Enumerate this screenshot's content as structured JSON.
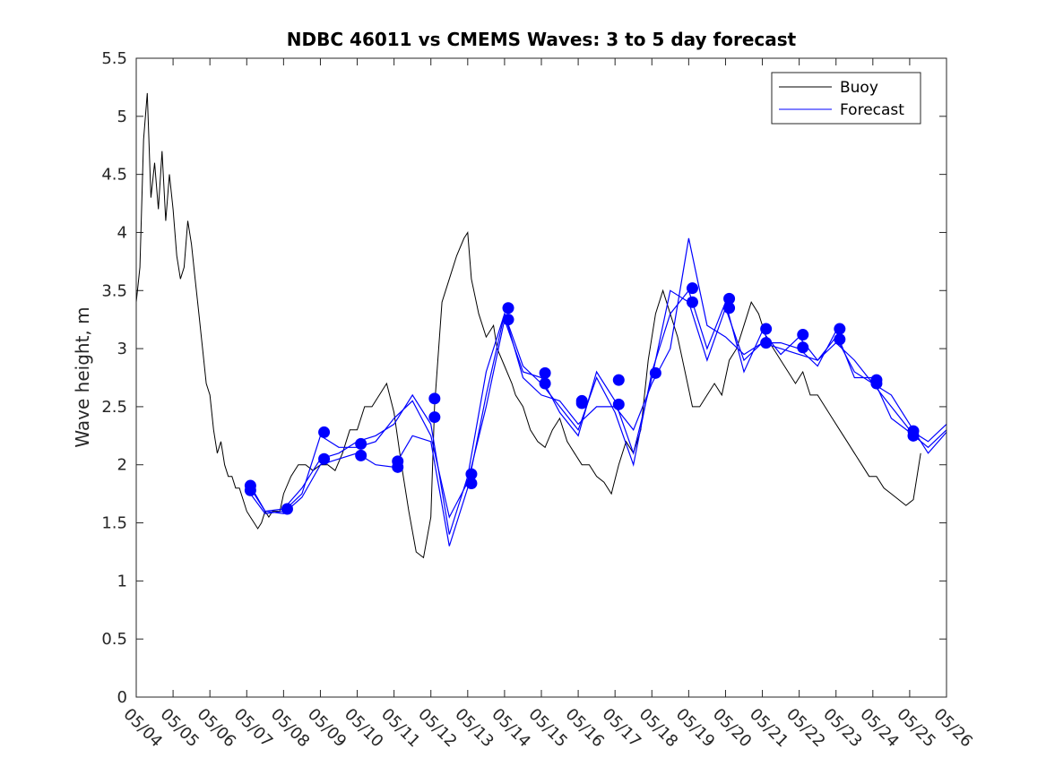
{
  "chart_data": {
    "type": "line",
    "title": "NDBC 46011 vs CMEMS Waves: 3 to 5 day forecast",
    "xlabel": "",
    "ylabel": "Wave height, m",
    "xlim": [
      0,
      22
    ],
    "ylim": [
      0,
      5.5
    ],
    "yticks": [
      0,
      0.5,
      1,
      1.5,
      2,
      2.5,
      3,
      3.5,
      4,
      4.5,
      5,
      5.5
    ],
    "ytick_labels": [
      "0",
      "0.5",
      "1",
      "1.5",
      "2",
      "2.5",
      "3",
      "3.5",
      "4",
      "4.5",
      "5",
      "5.5"
    ],
    "xtick_labels": [
      "05/04",
      "05/05",
      "05/06",
      "05/07",
      "05/08",
      "05/09",
      "05/10",
      "05/11",
      "05/12",
      "05/13",
      "05/14",
      "05/15",
      "05/16",
      "05/17",
      "05/18",
      "05/19",
      "05/20",
      "05/21",
      "05/22",
      "05/23",
      "05/24",
      "05/25",
      "05/26"
    ],
    "grid": false,
    "legend_position": "top-right",
    "legend": [
      "Buoy",
      "Forecast"
    ],
    "colors": {
      "buoy": "#000000",
      "forecast": "#0000ff"
    },
    "buoy": {
      "name": "Buoy",
      "x": [
        0,
        0.1,
        0.2,
        0.3,
        0.4,
        0.5,
        0.6,
        0.7,
        0.8,
        0.9,
        1.0,
        1.1,
        1.2,
        1.3,
        1.4,
        1.5,
        1.6,
        1.7,
        1.8,
        1.9,
        2.0,
        2.1,
        2.2,
        2.3,
        2.4,
        2.5,
        2.6,
        2.7,
        2.8,
        2.9,
        3.0,
        3.1,
        3.2,
        3.3,
        3.4,
        3.5,
        3.6,
        3.7,
        3.8,
        3.9,
        4.0,
        4.2,
        4.4,
        4.6,
        4.8,
        5.0,
        5.2,
        5.4,
        5.6,
        5.8,
        6.0,
        6.2,
        6.4,
        6.6,
        6.8,
        7.0,
        7.2,
        7.4,
        7.6,
        7.8,
        8.0,
        8.1,
        8.3,
        8.5,
        8.7,
        8.9,
        9.0,
        9.1,
        9.3,
        9.5,
        9.7,
        9.8,
        10.0,
        10.2,
        10.3,
        10.5,
        10.7,
        10.9,
        11.1,
        11.3,
        11.5,
        11.7,
        11.9,
        12.1,
        12.3,
        12.5,
        12.7,
        12.9,
        13.1,
        13.3,
        13.5,
        13.7,
        13.9,
        14.1,
        14.3,
        14.5,
        14.7,
        14.9,
        15.1,
        15.3,
        15.5,
        15.7,
        15.9,
        16.1,
        16.3,
        16.5,
        16.7,
        16.9,
        17.1,
        17.3,
        17.5,
        17.7,
        17.9,
        18.1,
        18.3,
        18.5,
        18.7,
        18.9,
        19.1,
        19.3,
        19.5,
        19.7,
        19.9,
        20.1,
        20.3,
        20.5,
        20.7,
        20.9,
        21.1,
        21.3
      ],
      "values": [
        3.4,
        3.7,
        4.8,
        5.2,
        4.3,
        4.6,
        4.2,
        4.7,
        4.1,
        4.5,
        4.2,
        3.8,
        3.6,
        3.7,
        4.1,
        3.9,
        3.6,
        3.3,
        3.0,
        2.7,
        2.6,
        2.3,
        2.1,
        2.2,
        2.0,
        1.9,
        1.9,
        1.8,
        1.8,
        1.7,
        1.6,
        1.55,
        1.5,
        1.45,
        1.5,
        1.6,
        1.55,
        1.6,
        1.6,
        1.6,
        1.75,
        1.9,
        2.0,
        2.0,
        1.95,
        2.0,
        2.0,
        1.95,
        2.1,
        2.3,
        2.3,
        2.5,
        2.5,
        2.6,
        2.7,
        2.45,
        2.0,
        1.6,
        1.25,
        1.2,
        1.55,
        2.5,
        3.4,
        3.6,
        3.8,
        3.95,
        4.0,
        3.6,
        3.3,
        3.1,
        3.2,
        3.0,
        2.85,
        2.7,
        2.6,
        2.5,
        2.3,
        2.2,
        2.15,
        2.3,
        2.4,
        2.2,
        2.1,
        2.0,
        2.0,
        1.9,
        1.85,
        1.75,
        2.0,
        2.2,
        2.1,
        2.3,
        2.9,
        3.3,
        3.5,
        3.3,
        3.1,
        2.8,
        2.5,
        2.5,
        2.6,
        2.7,
        2.6,
        2.9,
        3.0,
        3.2,
        3.4,
        3.3,
        3.1,
        3.0,
        2.9,
        2.8,
        2.7,
        2.8,
        2.6,
        2.6,
        2.5,
        2.4,
        2.3,
        2.2,
        2.1,
        2.0,
        1.9,
        1.9,
        1.8,
        1.75,
        1.7,
        1.65,
        1.7,
        2.1
      ]
    },
    "forecast_series": [
      {
        "name": "Forecast",
        "x": [
          3.1,
          3.5,
          4.0,
          4.5,
          5.0,
          5.5,
          6.0,
          6.5,
          7.0,
          7.5,
          8.0,
          8.5,
          9.0,
          9.5,
          10.0,
          10.5,
          11.0,
          11.5,
          12.0,
          12.5,
          13.0,
          13.5,
          14.0,
          14.5,
          15.0,
          15.5,
          16.0,
          16.5,
          17.0,
          17.5,
          18.0,
          18.5,
          19.0,
          19.5,
          20.0,
          20.5,
          21.0,
          21.5,
          22.0
        ],
        "values": [
          1.8,
          1.6,
          1.62,
          1.8,
          2.05,
          2.1,
          2.2,
          2.25,
          2.35,
          2.6,
          2.35,
          1.4,
          1.9,
          2.8,
          3.3,
          2.85,
          2.7,
          2.5,
          2.3,
          2.75,
          2.45,
          2.0,
          2.8,
          3.3,
          3.5,
          3.0,
          3.4,
          2.8,
          3.15,
          2.95,
          3.1,
          2.9,
          3.1,
          2.8,
          2.7,
          2.5,
          2.3,
          2.2,
          2.35
        ]
      },
      {
        "name": "Forecast",
        "x": [
          3.1,
          3.5,
          4.0,
          4.5,
          5.0,
          5.5,
          6.0,
          6.5,
          7.0,
          7.5,
          8.0,
          8.5,
          9.0,
          9.5,
          10.0,
          10.5,
          11.0,
          11.5,
          12.0,
          12.5,
          13.0,
          13.5,
          14.0,
          14.5,
          15.0,
          15.5,
          16.0,
          16.5,
          17.0,
          17.5,
          18.0,
          18.5,
          19.0,
          19.5,
          20.0,
          20.5,
          21.0,
          21.5,
          22.0
        ],
        "values": [
          1.75,
          1.58,
          1.6,
          1.75,
          2.25,
          2.15,
          2.15,
          2.2,
          2.4,
          2.55,
          2.25,
          1.55,
          1.85,
          2.5,
          3.25,
          2.8,
          2.75,
          2.45,
          2.25,
          2.8,
          2.55,
          2.1,
          2.75,
          3.5,
          3.4,
          2.9,
          3.35,
          2.9,
          3.05,
          3.05,
          3.0,
          2.85,
          3.15,
          2.75,
          2.75,
          2.4,
          2.28,
          2.15,
          2.3
        ]
      },
      {
        "name": "Forecast",
        "x": [
          3.1,
          3.5,
          4.0,
          4.5,
          5.0,
          5.5,
          6.0,
          6.5,
          7.0,
          7.5,
          8.0,
          8.5,
          9.0,
          9.5,
          10.0,
          10.5,
          11.0,
          11.5,
          12.0,
          12.5,
          13.0,
          13.5,
          14.0,
          14.5,
          15.0,
          15.5,
          16.0,
          16.5,
          17.0,
          17.5,
          18.0,
          18.5,
          19.0,
          19.5,
          20.0,
          20.5,
          21.0,
          21.5,
          22.0
        ],
        "values": [
          1.82,
          1.6,
          1.58,
          1.72,
          2.0,
          2.05,
          2.1,
          2.0,
          1.98,
          2.25,
          2.2,
          1.3,
          1.8,
          2.6,
          3.3,
          2.75,
          2.6,
          2.55,
          2.35,
          2.5,
          2.5,
          2.3,
          2.7,
          3.0,
          3.95,
          3.2,
          3.1,
          2.95,
          3.05,
          3.0,
          2.95,
          2.9,
          3.05,
          2.9,
          2.7,
          2.6,
          2.35,
          2.1,
          2.28
        ]
      }
    ],
    "forecast_markers": {
      "x": [
        3.1,
        3.1,
        4.1,
        5.1,
        5.1,
        6.1,
        6.1,
        7.1,
        7.1,
        8.1,
        8.1,
        9.1,
        9.1,
        10.1,
        10.1,
        11.1,
        11.1,
        12.1,
        12.1,
        13.1,
        13.1,
        14.1,
        15.1,
        15.1,
        16.1,
        16.1,
        17.1,
        17.1,
        18.1,
        18.1,
        19.1,
        19.1,
        20.1,
        20.1,
        21.1,
        21.1
      ],
      "values": [
        1.82,
        1.78,
        1.62,
        2.28,
        2.05,
        2.18,
        2.08,
        2.03,
        1.98,
        2.57,
        2.41,
        1.92,
        1.84,
        3.35,
        3.25,
        2.79,
        2.7,
        2.55,
        2.53,
        2.73,
        2.52,
        2.79,
        3.52,
        3.4,
        3.43,
        3.35,
        3.17,
        3.05,
        3.12,
        3.01,
        3.17,
        3.08,
        2.73,
        2.7,
        2.29,
        2.25
      ]
    }
  }
}
